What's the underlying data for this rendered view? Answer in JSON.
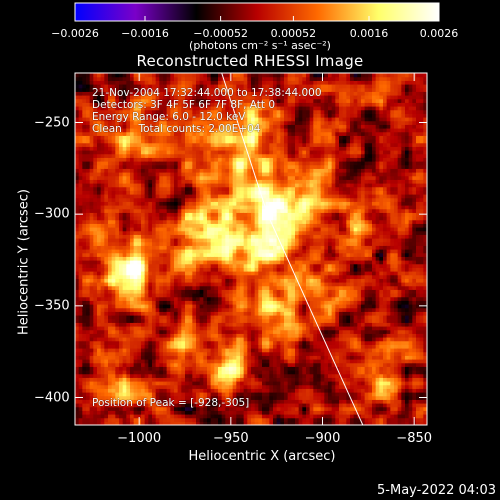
{
  "chart_data": {
    "type": "heatmap",
    "title": "Reconstructed RHESSI Image",
    "xlabel": "Heliocentric X (arcsec)",
    "ylabel": "Heliocentric Y (arcsec)",
    "xlim": [
      -1035,
      -843
    ],
    "ylim": [
      -415,
      -223
    ],
    "x_ticks": [
      {
        "value": -1000,
        "label": "−1000"
      },
      {
        "value": -950,
        "label": "−950"
      },
      {
        "value": -900,
        "label": "−900"
      },
      {
        "value": -850,
        "label": "−850"
      }
    ],
    "y_ticks": [
      {
        "value": -250,
        "label": "−250"
      },
      {
        "value": -300,
        "label": "−300"
      },
      {
        "value": -350,
        "label": "−350"
      },
      {
        "value": -400,
        "label": "−400"
      }
    ],
    "colorbar": {
      "range": [
        -0.0026,
        0.0026
      ],
      "ticks": [
        {
          "value": -0.0026,
          "label": "−0.0026"
        },
        {
          "value": -0.0016,
          "label": "−0.0016"
        },
        {
          "value": -0.00052,
          "label": "−0.00052"
        },
        {
          "value": 0.00052,
          "label": "0.00052"
        },
        {
          "value": 0.0016,
          "label": "0.0016"
        },
        {
          "value": 0.0026,
          "label": "0.0026"
        }
      ],
      "units": "(photons cm⁻² s⁻¹ asec⁻²)",
      "colors": [
        "#0000ff",
        "#7a00c8",
        "#000000",
        "#b80000",
        "#ff6a00",
        "#ffff6a",
        "#ffffff"
      ]
    },
    "annotations": {
      "time_range": "21-Nov-2004 17:32:44.000 to 17:38:44.000",
      "detectors": "Detectors: 3F 4F 5F 6F 7F 8F, Att 0",
      "energy_range": "Energy Range: 6.0 - 12.0 keV",
      "clean": "Clean     Total counts: 2.00E+04",
      "peak": "Position of Peak = [-928,-305]"
    },
    "sources": [
      {
        "x": -928,
        "y": -305,
        "peak": 0.0026,
        "sx": 9,
        "sy": 18
      },
      {
        "x": -1005,
        "y": -330,
        "peak": 0.0024,
        "sx": 9,
        "sy": 11
      },
      {
        "x": -962,
        "y": -312,
        "peak": 0.0021,
        "sx": 14,
        "sy": 11
      },
      {
        "x": -945,
        "y": -262,
        "peak": 0.0016,
        "sx": 12,
        "sy": 20
      },
      {
        "x": -928,
        "y": -355,
        "peak": 0.0015,
        "sx": 10,
        "sy": 12
      },
      {
        "x": -950,
        "y": -380,
        "peak": 0.0018,
        "sx": 6,
        "sy": 10
      },
      {
        "x": -905,
        "y": -290,
        "peak": 0.0012,
        "sx": 8,
        "sy": 14
      },
      {
        "x": -880,
        "y": -300,
        "peak": 0.0011,
        "sx": 7,
        "sy": 9
      },
      {
        "x": -870,
        "y": -385,
        "peak": 0.0012,
        "sx": 8,
        "sy": 12
      },
      {
        "x": -1000,
        "y": -260,
        "peak": 0.001,
        "sx": 14,
        "sy": 12
      },
      {
        "x": -1010,
        "y": -395,
        "peak": 0.001,
        "sx": 10,
        "sy": 9
      },
      {
        "x": -975,
        "y": -375,
        "peak": 0.0011,
        "sx": 9,
        "sy": 10
      },
      {
        "x": -900,
        "y": -340,
        "peak": 0.001,
        "sx": 9,
        "sy": 9
      },
      {
        "x": -1025,
        "y": -300,
        "peak": 0.0008,
        "sx": 8,
        "sy": 12
      }
    ],
    "limb_line": [
      [
        -955,
        -223
      ],
      [
        -930,
        -300
      ],
      [
        -903,
        -360
      ],
      [
        -878,
        -415
      ]
    ]
  },
  "footer": {
    "date": "5-May-2022 04:03"
  }
}
